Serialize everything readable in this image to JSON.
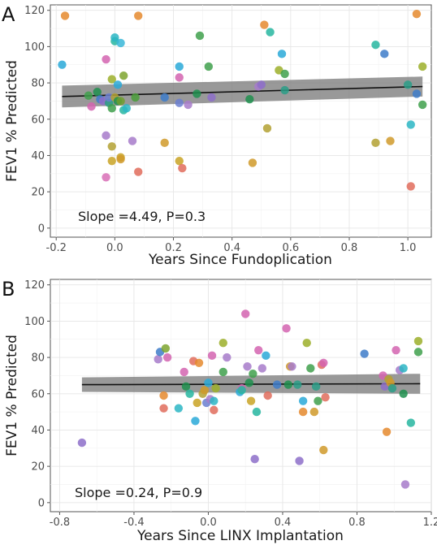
{
  "chart_data": [
    {
      "type": "scatter",
      "panel_label": "A",
      "xlabel": "Years Since Fundoplication",
      "ylabel": "FEV1 % Predicted",
      "xlim": [
        -0.22,
        1.08
      ],
      "ylim": [
        -5,
        123
      ],
      "x_ticks": [
        -0.2,
        0.0,
        0.2,
        0.4,
        0.6,
        0.8,
        1.0
      ],
      "x_tick_labels": [
        "-0.2",
        "0.0",
        "0.2",
        "0.4",
        "0.6",
        "0.8",
        "1.0"
      ],
      "y_ticks": [
        0,
        20,
        40,
        60,
        80,
        100,
        120
      ],
      "y_tick_labels": [
        "0",
        "20",
        "40",
        "60",
        "80",
        "100",
        "120"
      ],
      "annotation": "Slope =4.49, P=0.3",
      "fit": {
        "x": [
          -0.18,
          1.05
        ],
        "y": [
          72.5,
          78.0
        ],
        "ci_lower": [
          66.5,
          72.5
        ],
        "ci_upper": [
          78.5,
          83.5
        ]
      },
      "points": [
        {
          "x": -0.17,
          "y": 117,
          "color": "#E58A2E"
        },
        {
          "x": -0.18,
          "y": 90,
          "color": "#2AA9D8"
        },
        {
          "x": -0.09,
          "y": 73,
          "color": "#3FA04C"
        },
        {
          "x": -0.08,
          "y": 67,
          "color": "#D464B0"
        },
        {
          "x": -0.06,
          "y": 75,
          "color": "#1F8F4E"
        },
        {
          "x": -0.05,
          "y": 71,
          "color": "#3E7DC9"
        },
        {
          "x": -0.04,
          "y": 70,
          "color": "#8D6FC9"
        },
        {
          "x": -0.03,
          "y": 51,
          "color": "#A77BCA"
        },
        {
          "x": -0.03,
          "y": 28,
          "color": "#D86FB6"
        },
        {
          "x": -0.03,
          "y": 93,
          "color": "#D464B0"
        },
        {
          "x": -0.02,
          "y": 69,
          "color": "#2A9E87"
        },
        {
          "x": -0.02,
          "y": 72,
          "color": "#6B7FD0"
        },
        {
          "x": -0.01,
          "y": 82,
          "color": "#9CAF2A"
        },
        {
          "x": -0.01,
          "y": 66,
          "color": "#3FA04C"
        },
        {
          "x": -0.01,
          "y": 45,
          "color": "#B3A133"
        },
        {
          "x": -0.01,
          "y": 37,
          "color": "#C9A324"
        },
        {
          "x": 0.0,
          "y": 103,
          "color": "#27B6A0"
        },
        {
          "x": 0.0,
          "y": 105,
          "color": "#2BB6C4"
        },
        {
          "x": 0.0,
          "y": 72,
          "color": "#B3A133"
        },
        {
          "x": 0.01,
          "y": 79,
          "color": "#2AA9D8"
        },
        {
          "x": 0.01,
          "y": 70,
          "color": "#1F8F4E"
        },
        {
          "x": 0.02,
          "y": 102,
          "color": "#3AB7D8"
        },
        {
          "x": 0.02,
          "y": 70,
          "color": "#6F9E2E"
        },
        {
          "x": 0.02,
          "y": 39,
          "color": "#C9A324"
        },
        {
          "x": 0.02,
          "y": 38,
          "color": "#D09A2A"
        },
        {
          "x": 0.03,
          "y": 84,
          "color": "#7EA52F"
        },
        {
          "x": 0.03,
          "y": 65,
          "color": "#27B6A0"
        },
        {
          "x": 0.04,
          "y": 66,
          "color": "#2BB6C4"
        },
        {
          "x": 0.06,
          "y": 48,
          "color": "#A77BCA"
        },
        {
          "x": 0.07,
          "y": 72,
          "color": "#4A9D39"
        },
        {
          "x": 0.08,
          "y": 117,
          "color": "#E58A2E"
        },
        {
          "x": 0.08,
          "y": 31,
          "color": "#E06C5C"
        },
        {
          "x": 0.17,
          "y": 47,
          "color": "#D09A2A"
        },
        {
          "x": 0.17,
          "y": 72,
          "color": "#3E7DC9"
        },
        {
          "x": 0.22,
          "y": 89,
          "color": "#2AA9D8"
        },
        {
          "x": 0.22,
          "y": 83,
          "color": "#D464B0"
        },
        {
          "x": 0.22,
          "y": 69,
          "color": "#6B7FD0"
        },
        {
          "x": 0.22,
          "y": 37,
          "color": "#C9A324"
        },
        {
          "x": 0.23,
          "y": 33,
          "color": "#E06C5C"
        },
        {
          "x": 0.25,
          "y": 68,
          "color": "#A77BCA"
        },
        {
          "x": 0.28,
          "y": 74,
          "color": "#1F8F4E"
        },
        {
          "x": 0.29,
          "y": 106,
          "color": "#3FA04C"
        },
        {
          "x": 0.32,
          "y": 89,
          "color": "#3FA04C"
        },
        {
          "x": 0.33,
          "y": 72,
          "color": "#8D6FC9"
        },
        {
          "x": 0.46,
          "y": 71,
          "color": "#1F8F4E"
        },
        {
          "x": 0.47,
          "y": 36,
          "color": "#D09A2A"
        },
        {
          "x": 0.49,
          "y": 78,
          "color": "#A77BCA"
        },
        {
          "x": 0.5,
          "y": 79,
          "color": "#8D6FC9"
        },
        {
          "x": 0.51,
          "y": 112,
          "color": "#E58A2E"
        },
        {
          "x": 0.52,
          "y": 55,
          "color": "#B3A133"
        },
        {
          "x": 0.53,
          "y": 108,
          "color": "#27B6A0"
        },
        {
          "x": 0.56,
          "y": 87,
          "color": "#9CAF2A"
        },
        {
          "x": 0.57,
          "y": 96,
          "color": "#2AA9D8"
        },
        {
          "x": 0.58,
          "y": 85,
          "color": "#3FA04C"
        },
        {
          "x": 0.58,
          "y": 76,
          "color": "#2A9E87"
        },
        {
          "x": 0.89,
          "y": 101,
          "color": "#27B6A0"
        },
        {
          "x": 0.89,
          "y": 47,
          "color": "#B3A133"
        },
        {
          "x": 0.92,
          "y": 96,
          "color": "#3E7DC9"
        },
        {
          "x": 0.94,
          "y": 48,
          "color": "#D09A2A"
        },
        {
          "x": 1.0,
          "y": 79,
          "color": "#2A9E87"
        },
        {
          "x": 1.01,
          "y": 57,
          "color": "#2BB6C4"
        },
        {
          "x": 1.01,
          "y": 23,
          "color": "#E06C5C"
        },
        {
          "x": 1.03,
          "y": 118,
          "color": "#E58A2E"
        },
        {
          "x": 1.03,
          "y": 74,
          "color": "#3E7DC9"
        },
        {
          "x": 1.05,
          "y": 89,
          "color": "#9CAF2A"
        },
        {
          "x": 1.05,
          "y": 68,
          "color": "#3FA04C"
        }
      ]
    },
    {
      "type": "scatter",
      "panel_label": "B",
      "xlabel": "Years Since LINX Implantation",
      "ylabel": "FEV1 % Predicted",
      "xlim": [
        -0.85,
        1.2
      ],
      "ylim": [
        -5,
        123
      ],
      "x_ticks": [
        -0.8,
        -0.4,
        0.0,
        0.4,
        0.8,
        1.2
      ],
      "x_tick_labels": [
        "-0.8",
        "-0.4",
        "0.0",
        "0.4",
        "0.8",
        "1.2"
      ],
      "y_ticks": [
        0,
        20,
        40,
        60,
        80,
        100,
        120
      ],
      "y_tick_labels": [
        "0",
        "20",
        "40",
        "60",
        "80",
        "100",
        "120"
      ],
      "annotation": "Slope =0.24, P=0.9",
      "fit": {
        "x": [
          -0.68,
          1.14
        ],
        "y": [
          65.0,
          65.5
        ],
        "ci_lower": [
          61.0,
          60.0
        ],
        "ci_upper": [
          69.0,
          71.0
        ]
      },
      "points": [
        {
          "x": -0.68,
          "y": 33,
          "color": "#8D6FC9"
        },
        {
          "x": -0.27,
          "y": 79,
          "color": "#A77BCA"
        },
        {
          "x": -0.26,
          "y": 83,
          "color": "#3E7DC9"
        },
        {
          "x": -0.24,
          "y": 52,
          "color": "#E06C5C"
        },
        {
          "x": -0.24,
          "y": 59,
          "color": "#E58A2E"
        },
        {
          "x": -0.23,
          "y": 85,
          "color": "#7EA52F"
        },
        {
          "x": -0.22,
          "y": 80,
          "color": "#D464B0"
        },
        {
          "x": -0.16,
          "y": 52,
          "color": "#2BB6C4"
        },
        {
          "x": -0.13,
          "y": 72,
          "color": "#D464B0"
        },
        {
          "x": -0.12,
          "y": 64,
          "color": "#1F8F4E"
        },
        {
          "x": -0.1,
          "y": 60,
          "color": "#27B6A0"
        },
        {
          "x": -0.08,
          "y": 78,
          "color": "#E06C5C"
        },
        {
          "x": -0.07,
          "y": 45,
          "color": "#2AA9D8"
        },
        {
          "x": -0.06,
          "y": 55,
          "color": "#C9A324"
        },
        {
          "x": -0.05,
          "y": 77,
          "color": "#E58A2E"
        },
        {
          "x": -0.03,
          "y": 60,
          "color": "#B3A133"
        },
        {
          "x": -0.02,
          "y": 62,
          "color": "#D09A2A"
        },
        {
          "x": -0.01,
          "y": 55,
          "color": "#6B7FD0"
        },
        {
          "x": 0.0,
          "y": 66,
          "color": "#2AA9D8"
        },
        {
          "x": 0.01,
          "y": 57,
          "color": "#A77BCA"
        },
        {
          "x": 0.02,
          "y": 81,
          "color": "#D464B0"
        },
        {
          "x": 0.03,
          "y": 51,
          "color": "#E06C5C"
        },
        {
          "x": 0.03,
          "y": 56,
          "color": "#2BB6C4"
        },
        {
          "x": 0.04,
          "y": 63,
          "color": "#9CAF2A"
        },
        {
          "x": 0.08,
          "y": 88,
          "color": "#9CAF2A"
        },
        {
          "x": 0.08,
          "y": 72,
          "color": "#3FA04C"
        },
        {
          "x": 0.1,
          "y": 80,
          "color": "#A77BCA"
        },
        {
          "x": 0.17,
          "y": 61,
          "color": "#2AA9D8"
        },
        {
          "x": 0.18,
          "y": 63,
          "color": "#D464B0"
        },
        {
          "x": 0.18,
          "y": 62,
          "color": "#27B6A0"
        },
        {
          "x": 0.2,
          "y": 104,
          "color": "#D464B0"
        },
        {
          "x": 0.21,
          "y": 75,
          "color": "#A77BCA"
        },
        {
          "x": 0.22,
          "y": 66,
          "color": "#1F8F4E"
        },
        {
          "x": 0.23,
          "y": 56,
          "color": "#C9A324"
        },
        {
          "x": 0.24,
          "y": 71,
          "color": "#3FA04C"
        },
        {
          "x": 0.25,
          "y": 24,
          "color": "#8D6FC9"
        },
        {
          "x": 0.26,
          "y": 50,
          "color": "#27B6A0"
        },
        {
          "x": 0.27,
          "y": 84,
          "color": "#D464B0"
        },
        {
          "x": 0.29,
          "y": 74,
          "color": "#A77BCA"
        },
        {
          "x": 0.31,
          "y": 81,
          "color": "#2AA9D8"
        },
        {
          "x": 0.32,
          "y": 59,
          "color": "#E06C5C"
        },
        {
          "x": 0.37,
          "y": 65,
          "color": "#3E7DC9"
        },
        {
          "x": 0.42,
          "y": 96,
          "color": "#D464B0"
        },
        {
          "x": 0.43,
          "y": 65,
          "color": "#1F8F4E"
        },
        {
          "x": 0.44,
          "y": 75,
          "color": "#D09A2A"
        },
        {
          "x": 0.45,
          "y": 75,
          "color": "#A77BCA"
        },
        {
          "x": 0.48,
          "y": 65,
          "color": "#2A9E87"
        },
        {
          "x": 0.49,
          "y": 23,
          "color": "#8D6FC9"
        },
        {
          "x": 0.51,
          "y": 50,
          "color": "#E58A2E"
        },
        {
          "x": 0.51,
          "y": 56,
          "color": "#2AA9D8"
        },
        {
          "x": 0.53,
          "y": 88,
          "color": "#9CAF2A"
        },
        {
          "x": 0.55,
          "y": 74,
          "color": "#3FA04C"
        },
        {
          "x": 0.57,
          "y": 50,
          "color": "#D09A2A"
        },
        {
          "x": 0.58,
          "y": 64,
          "color": "#2A9E87"
        },
        {
          "x": 0.59,
          "y": 56,
          "color": "#3FA04C"
        },
        {
          "x": 0.61,
          "y": 76,
          "color": "#E06C5C"
        },
        {
          "x": 0.62,
          "y": 29,
          "color": "#D09A2A"
        },
        {
          "x": 0.62,
          "y": 77,
          "color": "#D464B0"
        },
        {
          "x": 0.63,
          "y": 58,
          "color": "#E06C5C"
        },
        {
          "x": 0.84,
          "y": 82,
          "color": "#3E7DC9"
        },
        {
          "x": 0.94,
          "y": 70,
          "color": "#D464B0"
        },
        {
          "x": 0.95,
          "y": 64,
          "color": "#8D6FC9"
        },
        {
          "x": 0.96,
          "y": 39,
          "color": "#E58A2E"
        },
        {
          "x": 0.97,
          "y": 68,
          "color": "#B3A133"
        },
        {
          "x": 0.98,
          "y": 66,
          "color": "#D09A2A"
        },
        {
          "x": 0.99,
          "y": 63,
          "color": "#2A9E87"
        },
        {
          "x": 1.01,
          "y": 84,
          "color": "#D464B0"
        },
        {
          "x": 1.03,
          "y": 73,
          "color": "#A77BCA"
        },
        {
          "x": 1.05,
          "y": 74,
          "color": "#2BB6C4"
        },
        {
          "x": 1.05,
          "y": 60,
          "color": "#1F8F4E"
        },
        {
          "x": 1.06,
          "y": 10,
          "color": "#A77BCA"
        },
        {
          "x": 1.09,
          "y": 44,
          "color": "#27B6A0"
        },
        {
          "x": 1.13,
          "y": 89,
          "color": "#9CAF2A"
        },
        {
          "x": 1.13,
          "y": 83,
          "color": "#3FA04C"
        }
      ]
    }
  ]
}
